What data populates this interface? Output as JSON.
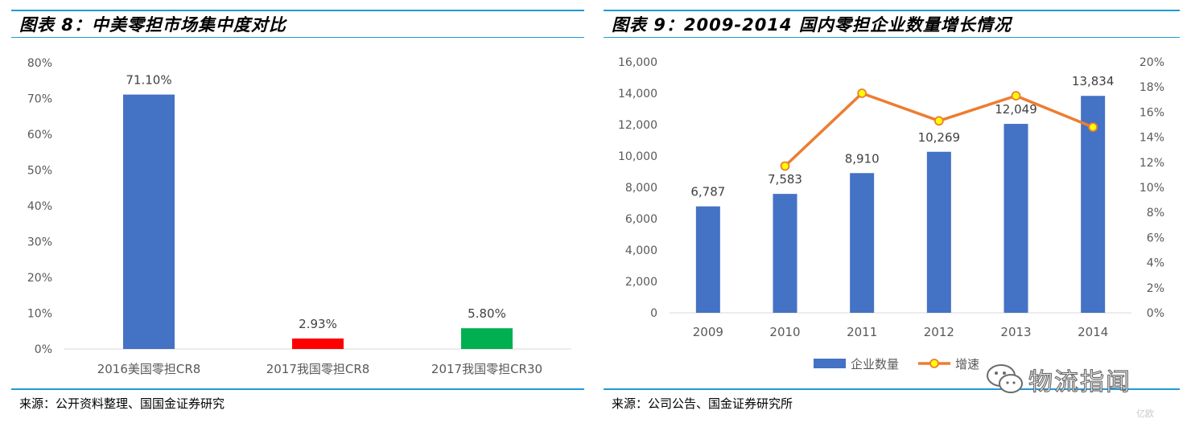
{
  "left": {
    "title": "图表 8：中美零担市场集中度对比",
    "source": "来源：公开资料整理、国国金证券研究"
  },
  "right": {
    "title": "图表 9：2009-2014 国内零担企业数量增长情况",
    "source": "来源：公司公告、国金证券研究所"
  },
  "watermark": {
    "text": "物流指闻",
    "icon": "wechat-icon",
    "mark": "亿欧"
  },
  "colors": {
    "accent_rule": "#1f9ad6",
    "bar_blue": "#4472c4",
    "bar_red": "#ff0000",
    "bar_green": "#00b050",
    "line_orange": "#ed7d31",
    "marker_fill": "#ffff00"
  },
  "chart_data": [
    {
      "type": "bar",
      "title": "中美零担市场集中度对比",
      "categories": [
        "2016美国零担CR8",
        "2017我国零担CR8",
        "2017我国零担CR30"
      ],
      "values": [
        71.1,
        2.93,
        5.8
      ],
      "data_labels": [
        "71.10%",
        "2.93%",
        "5.80%"
      ],
      "bar_colors": [
        "#4472c4",
        "#ff0000",
        "#00b050"
      ],
      "ylim": [
        0,
        80
      ],
      "yticks": [
        "0%",
        "10%",
        "20%",
        "30%",
        "40%",
        "50%",
        "60%",
        "70%",
        "80%"
      ],
      "grid": false,
      "legend": "none"
    },
    {
      "type": "bar",
      "title": "2009-2014 国内零担企业数量增长情况",
      "categories": [
        "2009",
        "2010",
        "2011",
        "2012",
        "2013",
        "2014"
      ],
      "series": [
        {
          "name": "企业数量",
          "type": "bar",
          "axis": "left",
          "color": "#4472c4",
          "values": [
            6787,
            7583,
            8910,
            10269,
            12049,
            13834
          ],
          "data_labels": [
            "6,787",
            "7,583",
            "8,910",
            "10,269",
            "12,049",
            "13,834"
          ]
        },
        {
          "name": "增速",
          "type": "line",
          "axis": "right",
          "color": "#ed7d31",
          "values": [
            null,
            11.7,
            17.5,
            15.3,
            17.3,
            14.8
          ]
        }
      ],
      "ylim": [
        0,
        16000
      ],
      "yticks": [
        "0",
        "2,000",
        "4,000",
        "6,000",
        "8,000",
        "10,000",
        "12,000",
        "14,000",
        "16,000"
      ],
      "y2lim": [
        0,
        20
      ],
      "y2ticks": [
        "0%",
        "2%",
        "4%",
        "6%",
        "8%",
        "10%",
        "12%",
        "14%",
        "16%",
        "18%",
        "20%"
      ],
      "grid": false,
      "legend": "bottom"
    }
  ]
}
